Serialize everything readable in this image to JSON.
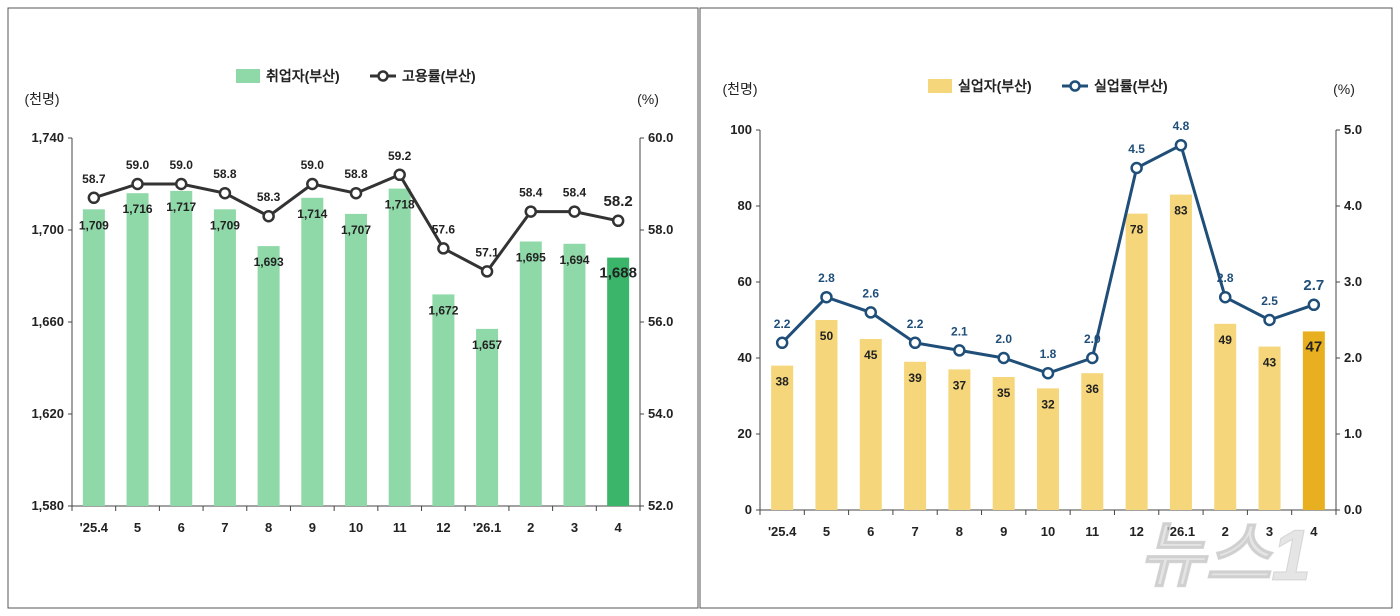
{
  "colors": {
    "employed_bar": "#8fd8a8",
    "employed_bar_highlight": "#3bb56a",
    "employment_line": "#333333",
    "unemployed_bar": "#f5d67a",
    "unemployed_bar_highlight": "#e8b020",
    "unemployment_line": "#1f4e79",
    "unemployment_label": "#1f4e79",
    "frame": "#555555"
  },
  "chart_data": [
    {
      "type": "bar",
      "categories": [
        "'25.4",
        "5",
        "6",
        "7",
        "8",
        "9",
        "10",
        "11",
        "12",
        "'26.1",
        "2",
        "3",
        "4"
      ],
      "series": [
        {
          "name": "취업자(부산)",
          "type": "bar",
          "axis": "left",
          "values": [
            1709,
            1716,
            1717,
            1709,
            1693,
            1714,
            1707,
            1718,
            1672,
            1657,
            1695,
            1694,
            1688
          ],
          "labels": [
            "1,709",
            "1,716",
            "1,717",
            "1,709",
            "1,693",
            "1,714",
            "1,707",
            "1,718",
            "1,672",
            "1,657",
            "1,695",
            "1,694",
            "1,688"
          ]
        },
        {
          "name": "고용률(부산)",
          "type": "line",
          "axis": "right",
          "values": [
            58.7,
            59.0,
            59.0,
            58.8,
            58.3,
            59.0,
            58.8,
            59.2,
            57.6,
            57.1,
            58.4,
            58.4,
            58.2
          ],
          "labels": [
            "58.7",
            "59.0",
            "59.0",
            "58.8",
            "58.3",
            "59.0",
            "58.8",
            "59.2",
            "57.6",
            "57.1",
            "58.4",
            "58.4",
            "58.2"
          ]
        }
      ],
      "left_unit": "(천명)",
      "right_unit": "(%)",
      "ylim_left": [
        1580,
        1740
      ],
      "yticks_left": [
        "1,580",
        "1,620",
        "1,660",
        "1,700",
        "1,740"
      ],
      "ylim_right": [
        52.0,
        60.0
      ],
      "yticks_right": [
        "52.0",
        "54.0",
        "56.0",
        "58.0",
        "60.0"
      ],
      "legend_position": "top-center",
      "highlight_last": true
    },
    {
      "type": "bar",
      "categories": [
        "'25.4",
        "5",
        "6",
        "7",
        "8",
        "9",
        "10",
        "11",
        "12",
        "'26.1",
        "2",
        "3",
        "4"
      ],
      "series": [
        {
          "name": "실업자(부산)",
          "type": "bar",
          "axis": "left",
          "values": [
            38,
            50,
            45,
            39,
            37,
            35,
            32,
            36,
            78,
            83,
            49,
            43,
            47
          ],
          "labels": [
            "38",
            "50",
            "45",
            "39",
            "37",
            "35",
            "32",
            "36",
            "78",
            "83",
            "49",
            "43",
            "47"
          ]
        },
        {
          "name": "실업률(부산)",
          "type": "line",
          "axis": "right",
          "values": [
            2.2,
            2.8,
            2.6,
            2.2,
            2.1,
            2.0,
            1.8,
            2.0,
            4.5,
            4.8,
            2.8,
            2.5,
            2.7
          ],
          "labels": [
            "2.2",
            "2.8",
            "2.6",
            "2.2",
            "2.1",
            "2.0",
            "1.8",
            "2.0",
            "4.5",
            "4.8",
            "2.8",
            "2.5",
            "2.7"
          ]
        }
      ],
      "left_unit": "(천명)",
      "right_unit": "(%)",
      "ylim_left": [
        0,
        100
      ],
      "yticks_left": [
        "0",
        "20",
        "40",
        "60",
        "80",
        "100"
      ],
      "ylim_right": [
        0.0,
        5.0
      ],
      "yticks_right": [
        "0.0",
        "1.0",
        "2.0",
        "3.0",
        "4.0",
        "5.0"
      ],
      "legend_position": "top-center",
      "highlight_last": true
    }
  ],
  "watermark": {
    "text": "뉴스1"
  }
}
